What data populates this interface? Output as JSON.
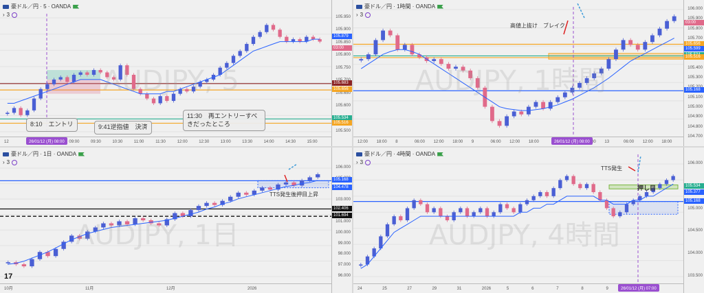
{
  "colors": {
    "up": "#4a5fd4",
    "down": "#e06a8a",
    "ma": "#2962ff",
    "orange": "#f5a623",
    "blue": "#2962ff",
    "teal": "#27ae90",
    "maroon": "#8b2323",
    "purple": "#9a4fd0"
  },
  "panes": [
    {
      "id": "p5m",
      "header": "豪ドル／円 · 5 · OANDA",
      "sub": "3",
      "watermark": "AUDJPY, 5",
      "tlabels": [
        "12",
        "26/01/12 (月)",
        "08:00",
        "09:00",
        "09:30",
        "10:30",
        "11:00",
        "11:30",
        "12:00",
        "12:30",
        "13:00",
        "13:30",
        "14:00",
        "14:30",
        "15:00"
      ],
      "ticks": [
        "105.950",
        "105.900",
        "105.850",
        "105.800",
        "105.750",
        "105.700",
        "105.650",
        "105.600",
        "105.550",
        "105.500"
      ],
      "price_labels": [
        {
          "text": "105.879",
          "color": "#2962ff"
        },
        {
          "text": "03:00",
          "color": "#e06a8a"
        },
        {
          "text": "105.683",
          "color": "#8b2323"
        },
        {
          "text": "105.656",
          "color": "#f5a623"
        },
        {
          "text": "105.534",
          "color": "#27ae90"
        },
        {
          "text": "105.516",
          "color": "#f5a623"
        }
      ],
      "annotations": [
        "8:10　エントリ",
        "9:41逆指値　決済",
        "11:30　再エントリーすべきだったところ"
      ]
    },
    {
      "id": "p1h",
      "header": "豪ドル／円 · 1時間 · OANDA",
      "sub": "3",
      "watermark": "AUDJPY, 1時間",
      "tlabels": [
        "12:00",
        "18:00",
        "8",
        "06:00",
        "12:00",
        "18:00",
        "9",
        "06:00",
        "12:00",
        "18:00",
        "26/01/12 (月)",
        "08:00",
        "18:00",
        "13",
        "06:00",
        "12:00",
        "18:00"
      ],
      "ticks": [
        "106.000",
        "105.900",
        "105.800",
        "105.700",
        "105.600",
        "105.500",
        "105.400",
        "105.300",
        "105.200",
        "105.100",
        "105.000",
        "104.900",
        "104.800",
        "104.700"
      ],
      "price_labels": [
        {
          "text": "105.879",
          "color": "#2962ff"
        },
        {
          "text": "03:00",
          "color": "#e06a8a"
        },
        {
          "text": "105.656",
          "color": "#f5a623"
        },
        {
          "text": "105.599",
          "color": "#2962ff"
        },
        {
          "text": "105.534",
          "color": "#27ae90"
        },
        {
          "text": "105.516",
          "color": "#f5a623"
        },
        {
          "text": "105.168",
          "color": "#2962ff"
        }
      ],
      "annotations": [
        "高値上抜け　ブレイク"
      ]
    },
    {
      "id": "p1d",
      "header": "豪ドル／円 · 1日 · OANDA",
      "sub": "3",
      "watermark": "AUDJPY, 1日",
      "tlabels": [
        "10月",
        "11月",
        "12月",
        "2026"
      ],
      "ticks": [
        "106.000",
        "105.000",
        "104.000",
        "103.000",
        "102.000",
        "101.000",
        "100.000",
        "99.000",
        "98.000",
        "97.000",
        "96.000"
      ],
      "price_labels": [
        {
          "text": "105.168",
          "color": "#2962ff"
        },
        {
          "text": "104.478",
          "color": "#2962ff"
        },
        {
          "text": "102.406",
          "color": "#111111"
        },
        {
          "text": "101.694",
          "color": "#111111"
        }
      ],
      "annotations": [
        "TTS発生後押目上昇"
      ]
    },
    {
      "id": "p4h",
      "header": "豪ドル／円 · 4時間 · OANDA",
      "sub": "3",
      "watermark": "AUDJPY, 4時間",
      "tlabels": [
        "24",
        "25",
        "27",
        "29",
        "31",
        "2026",
        "5",
        "6",
        "7",
        "8",
        "9",
        "26/01/12 (月)",
        "07:00"
      ],
      "ticks": [
        "106.000",
        "105.500",
        "105.000",
        "104.500",
        "104.000",
        "103.500"
      ],
      "price_labels": [
        {
          "text": "105.534",
          "color": "#27ae90"
        },
        {
          "text": "105.377",
          "color": "#2962ff"
        },
        {
          "text": "105.168",
          "color": "#2962ff"
        }
      ],
      "annotations": [
        "TTS発生",
        "押し目"
      ]
    }
  ],
  "chart_data": [
    {
      "type": "candlestick",
      "title": "豪ドル／円 · 5 · OANDA",
      "ylim": [
        105.48,
        105.96
      ],
      "close": [
        105.56,
        105.58,
        105.55,
        105.57,
        105.62,
        105.66,
        105.68,
        105.7,
        105.71,
        105.69,
        105.72,
        105.73,
        105.72,
        105.74,
        105.73,
        105.71,
        105.7,
        105.76,
        105.72,
        105.66,
        105.64,
        105.62,
        105.6,
        105.63,
        105.61,
        105.64,
        105.66,
        105.65,
        105.67,
        105.69,
        105.7,
        105.72,
        105.75,
        105.77,
        105.8,
        105.82,
        105.85,
        105.88,
        105.9,
        105.93,
        105.91,
        105.88,
        105.86,
        105.87,
        105.86,
        105.88,
        105.87,
        105.86
      ],
      "ma": [
        105.6,
        105.6,
        105.61,
        105.62,
        105.63,
        105.64,
        105.65,
        105.66,
        105.67,
        105.68,
        105.69,
        105.7,
        105.7,
        105.7,
        105.7,
        105.69,
        105.68,
        105.67,
        105.66,
        105.65,
        105.64,
        105.64,
        105.64,
        105.64,
        105.65,
        105.65,
        105.66,
        105.67,
        105.68,
        105.69,
        105.7,
        105.71,
        105.72,
        105.74,
        105.76,
        105.78,
        105.8,
        105.82,
        105.83,
        105.84,
        105.85,
        105.86,
        105.86,
        105.86,
        105.86,
        105.86,
        105.87,
        105.87
      ],
      "hlines": [
        {
          "y": 105.683,
          "color": "#8b2323"
        },
        {
          "y": 105.656,
          "color": "#f5a623"
        },
        {
          "y": 105.534,
          "color": "#27ae90"
        },
        {
          "y": 105.516,
          "color": "#f5a623"
        }
      ]
    },
    {
      "type": "candlestick",
      "title": "豪ドル／円 · 1時間 · OANDA",
      "ylim": [
        104.68,
        106.02
      ],
      "close": [
        105.5,
        105.55,
        105.7,
        105.8,
        105.75,
        105.6,
        105.65,
        105.55,
        105.52,
        105.48,
        105.5,
        105.45,
        105.4,
        105.42,
        105.38,
        105.3,
        105.2,
        105.0,
        104.85,
        104.8,
        104.9,
        104.95,
        104.92,
        105.0,
        105.05,
        104.98,
        105.05,
        105.1,
        105.15,
        105.2,
        105.25,
        105.3,
        105.35,
        105.4,
        105.5,
        105.6,
        105.7,
        105.65,
        105.6,
        105.68,
        105.75,
        105.82,
        105.9,
        105.95
      ],
      "ma": [
        105.4,
        105.45,
        105.5,
        105.55,
        105.58,
        105.6,
        105.6,
        105.58,
        105.55,
        105.5,
        105.45,
        105.4,
        105.35,
        105.3,
        105.25,
        105.2,
        105.15,
        105.1,
        105.05,
        105.0,
        104.98,
        104.97,
        104.96,
        104.96,
        104.97,
        104.98,
        105.0,
        105.02,
        105.05,
        105.08,
        105.12,
        105.16,
        105.2,
        105.25,
        105.3,
        105.36,
        105.42,
        105.48,
        105.52,
        105.56,
        105.6,
        105.64,
        105.68,
        105.72
      ],
      "hlines": [
        {
          "y": 105.656,
          "color": "#f5a623"
        },
        {
          "y": 105.534,
          "color": "#27ae90"
        },
        {
          "y": 105.516,
          "color": "#f5a623"
        },
        {
          "y": 105.168,
          "color": "#2962ff"
        }
      ]
    },
    {
      "type": "candlestick",
      "title": "豪ドル／円 · 1日 · OANDA",
      "ylim": [
        95.8,
        106.4
      ],
      "close": [
        97.2,
        97.0,
        96.8,
        97.5,
        98.2,
        97.8,
        98.5,
        99.2,
        99.8,
        99.5,
        100.2,
        100.6,
        101.0,
        100.8,
        101.2,
        100.9,
        101.5,
        101.3,
        101.0,
        100.8,
        101.4,
        102.0,
        101.7,
        102.3,
        102.7,
        103.0,
        102.8,
        103.2,
        103.6,
        104.0,
        103.8,
        104.2,
        104.5,
        104.3,
        104.8,
        105.0,
        104.7,
        105.2,
        105.5,
        105.8
      ],
      "ma": [
        97.0,
        97.1,
        97.3,
        97.6,
        97.9,
        98.2,
        98.6,
        99.0,
        99.4,
        99.7,
        100.0,
        100.2,
        100.4,
        100.6,
        100.7,
        100.8,
        100.9,
        101.0,
        101.1,
        101.2,
        101.3,
        101.5,
        101.7,
        101.9,
        102.1,
        102.4,
        102.6,
        102.9,
        103.1,
        103.4,
        103.6,
        103.8,
        104.0,
        104.2,
        104.4,
        104.6,
        104.7,
        104.9,
        105.0,
        105.2
      ],
      "hlines": [
        {
          "y": 105.168,
          "color": "#2962ff"
        },
        {
          "y": 102.406,
          "color": "#111111"
        },
        {
          "y": 101.694,
          "color": "#111111"
        }
      ]
    },
    {
      "type": "candlestick",
      "title": "豪ドル／円 · 4時間 · OANDA",
      "ylim": [
        103.3,
        106.1
      ],
      "close": [
        103.6,
        103.8,
        104.0,
        104.3,
        104.6,
        104.8,
        104.7,
        105.0,
        105.2,
        105.1,
        104.9,
        105.0,
        104.8,
        104.7,
        104.9,
        105.0,
        104.8,
        104.9,
        105.0,
        104.8,
        104.9,
        105.1,
        105.0,
        104.9,
        105.1,
        105.2,
        105.3,
        105.4,
        105.3,
        105.5,
        105.7,
        105.8,
        105.6,
        105.5,
        105.6,
        105.4,
        105.2,
        105.0,
        104.8,
        104.9,
        105.1,
        105.2,
        105.3,
        105.4,
        105.5,
        105.6,
        105.7,
        105.8
      ],
      "ma": [
        103.5,
        103.6,
        103.8,
        104.0,
        104.2,
        104.4,
        104.5,
        104.6,
        104.7,
        104.8,
        104.8,
        104.8,
        104.8,
        104.8,
        104.8,
        104.8,
        104.8,
        104.8,
        104.8,
        104.8,
        104.8,
        104.8,
        104.8,
        104.8,
        104.9,
        104.9,
        105.0,
        105.0,
        105.1,
        105.1,
        105.2,
        105.3,
        105.3,
        105.3,
        105.3,
        105.3,
        105.2,
        105.2,
        105.1,
        105.1,
        105.1,
        105.2,
        105.2,
        105.3,
        105.3,
        105.4,
        105.5,
        105.6
      ],
      "hlines": [
        {
          "y": 105.168,
          "color": "#2962ff"
        }
      ]
    }
  ]
}
